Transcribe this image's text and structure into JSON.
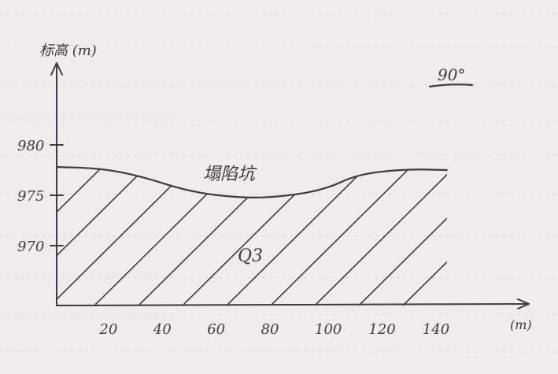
{
  "chart_data": {
    "type": "area",
    "y_label": "标高 (m)",
    "x_unit_label": "(m)",
    "y_ticks": [
      "980",
      "975",
      "970"
    ],
    "x_ticks": [
      "20",
      "40",
      "60",
      "80",
      "100",
      "120",
      "140"
    ],
    "x_tick_values": [
      20,
      40,
      60,
      80,
      100,
      120,
      140
    ],
    "y_tick_values": [
      980,
      975,
      970
    ],
    "profile": {
      "x": [
        0,
        15,
        30,
        50,
        70,
        85,
        100,
        112,
        130,
        145
      ],
      "y": [
        977.8,
        977.7,
        977.0,
        975.3,
        974.7,
        974.9,
        975.6,
        977.1,
        977.6,
        977.5
      ]
    },
    "surface_label": "塌陷坑",
    "unit_label": "Q3",
    "angle_note": "90°",
    "colors": {
      "ink": "#3b3b40",
      "paper": "#eeedeb",
      "rule": "#d4d3d0"
    }
  }
}
